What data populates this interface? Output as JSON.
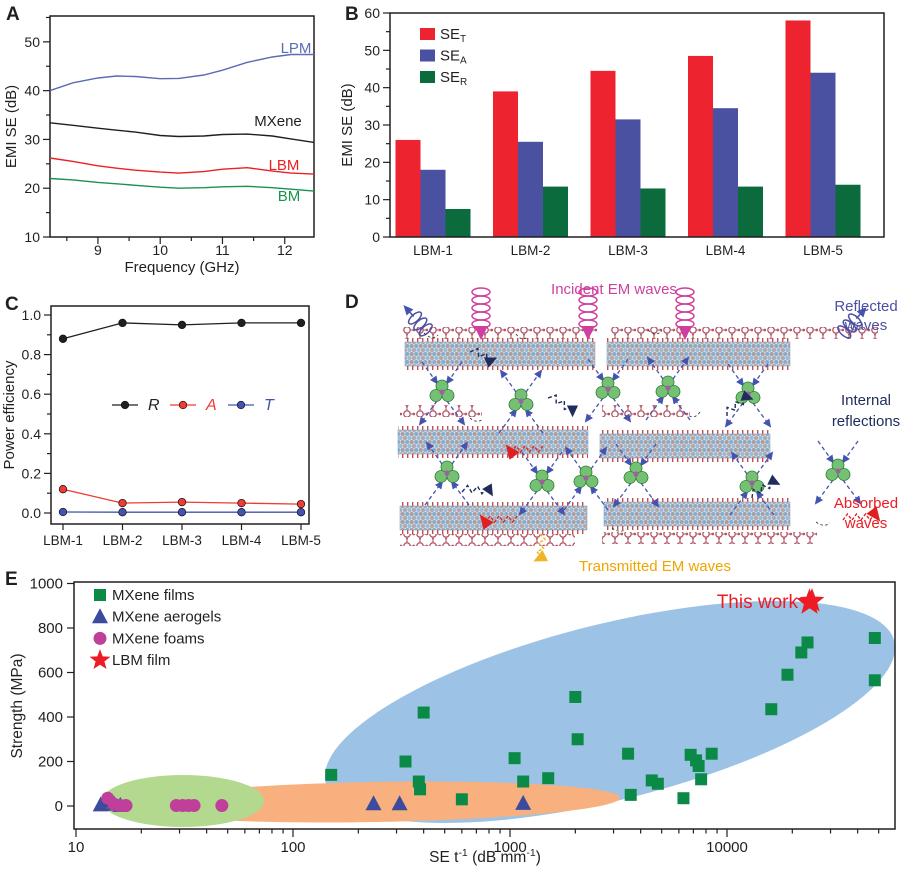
{
  "panels": {
    "a": "A",
    "b": "B",
    "c": "C",
    "d": "D",
    "e": "E"
  },
  "chart_data": [
    {
      "id": "A",
      "type": "line",
      "xlabel": "Frequency (GHz)",
      "ylabel": "EMI SE (dB)",
      "xlim": [
        8.23,
        12.47
      ],
      "ylim": [
        10,
        55.3
      ],
      "xticks": [
        9,
        10,
        11,
        12
      ],
      "yticks": [
        10,
        20,
        30,
        40,
        50
      ],
      "x": [
        8.23,
        8.6,
        9.0,
        9.3,
        9.6,
        10.0,
        10.3,
        10.7,
        11.0,
        11.4,
        11.8,
        12.1,
        12.47
      ],
      "series": [
        {
          "name": "LPM",
          "color": "#5b6cb5",
          "y": [
            40.0,
            41.6,
            42.6,
            43.0,
            42.9,
            42.45,
            42.5,
            43.2,
            44.2,
            45.8,
            46.9,
            47.4,
            47.4
          ]
        },
        {
          "name": "MXene",
          "color": "#231f20",
          "y": [
            33.4,
            32.9,
            32.3,
            31.9,
            31.5,
            30.8,
            30.6,
            30.7,
            31.0,
            31.1,
            30.7,
            30.1,
            29.4
          ]
        },
        {
          "name": "LBM",
          "color": "#ed2024",
          "y": [
            26.2,
            25.5,
            24.6,
            24.1,
            23.7,
            23.3,
            23.1,
            23.4,
            23.9,
            24.2,
            23.5,
            23.1,
            22.9
          ]
        },
        {
          "name": "BM",
          "color": "#17934f",
          "y": [
            22.0,
            21.7,
            21.2,
            20.9,
            20.6,
            20.2,
            20.0,
            20.1,
            20.3,
            20.4,
            20.1,
            19.8,
            19.4
          ]
        }
      ]
    },
    {
      "id": "B",
      "type": "bar",
      "ylabel": "EMI SE (dB)",
      "ylim": [
        0,
        60
      ],
      "yticks": [
        0,
        10,
        20,
        30,
        40,
        50,
        60
      ],
      "categories": [
        "LBM-1",
        "LBM-2",
        "LBM-3",
        "LBM-4",
        "LBM-5"
      ],
      "series": [
        {
          "label_main": "SE",
          "label_sub": "T",
          "color": "#ee2330",
          "values": [
            26,
            39,
            44.5,
            48.5,
            58
          ]
        },
        {
          "label_main": "SE",
          "label_sub": "A",
          "color": "#4a51a0",
          "values": [
            18,
            25.5,
            31.5,
            34.5,
            44
          ]
        },
        {
          "label_main": "SE",
          "label_sub": "R",
          "color": "#0b6b3d",
          "values": [
            7.5,
            13.5,
            13,
            13.5,
            14
          ]
        }
      ]
    },
    {
      "id": "C",
      "type": "line",
      "ylabel": "Power efficiency",
      "ylim": [
        -0.05,
        1.05
      ],
      "yticks": [
        0.0,
        0.2,
        0.4,
        0.6,
        0.8,
        1.0
      ],
      "categories": [
        "LBM-1",
        "LBM-2",
        "LBM-3",
        "LBM-4",
        "LBM-5"
      ],
      "series": [
        {
          "name": "R",
          "color": "#231f20",
          "values": [
            0.88,
            0.96,
            0.95,
            0.96,
            0.96
          ]
        },
        {
          "name": "A",
          "color": "#ee3b33",
          "values": [
            0.12,
            0.05,
            0.055,
            0.05,
            0.045
          ]
        },
        {
          "name": "T",
          "color": "#4453b0",
          "values": [
            0.005,
            0.004,
            0.004,
            0.004,
            0.004
          ]
        }
      ]
    },
    {
      "id": "E",
      "type": "scatter",
      "ylabel": "Strength (MPa)",
      "xlabel_parts": [
        {
          "t": "SE t"
        },
        {
          "t": "-1",
          "sup": true
        },
        {
          "t": " (dB mm"
        },
        {
          "t": "-1",
          "sup": true
        },
        {
          "t": ")"
        }
      ],
      "xticks": [
        10,
        100,
        1000,
        10000
      ],
      "yticks": [
        0,
        200,
        400,
        600,
        800,
        1000
      ],
      "xlim_log": [
        10,
        59000
      ],
      "ylim": [
        -100,
        1005
      ],
      "series": [
        {
          "name": "MXene films",
          "marker": "square",
          "color": "#0a8a46",
          "points": [
            [
              150,
              140
            ],
            [
              330,
              200
            ],
            [
              400,
              420
            ],
            [
              380,
              110
            ],
            [
              385,
              75
            ],
            [
              600,
              30
            ],
            [
              1050,
              215
            ],
            [
              1150,
              110
            ],
            [
              1500,
              125
            ],
            [
              2000,
              490
            ],
            [
              2050,
              300
            ],
            [
              3500,
              235
            ],
            [
              3600,
              50
            ],
            [
              4500,
              115
            ],
            [
              4800,
              100
            ],
            [
              6300,
              35
            ],
            [
              6800,
              230
            ],
            [
              7200,
              205
            ],
            [
              7400,
              180
            ],
            [
              7600,
              120
            ],
            [
              8500,
              235
            ],
            [
              16000,
              435
            ],
            [
              19000,
              590
            ],
            [
              22000,
              690
            ],
            [
              23500,
              735
            ],
            [
              48000,
              755
            ],
            [
              48000,
              565
            ]
          ]
        },
        {
          "name": "MXene aerogels",
          "marker": "triangle",
          "color": "#3c4b9e",
          "points": [
            [
              13,
              5
            ],
            [
              14,
              22
            ],
            [
              15,
              8
            ],
            [
              16,
              3
            ],
            [
              235,
              10
            ],
            [
              310,
              10
            ],
            [
              1150,
              12
            ]
          ]
        },
        {
          "name": "MXene foams",
          "marker": "circle",
          "color": "#bf3f9a",
          "points": [
            [
              14,
              35
            ],
            [
              15,
              8
            ],
            [
              16,
              2
            ],
            [
              17,
              2
            ],
            [
              29,
              2
            ],
            [
              31,
              2
            ],
            [
              33,
              2
            ],
            [
              35,
              2
            ],
            [
              47,
              2
            ]
          ]
        },
        {
          "name": "LBM film",
          "marker": "star",
          "color": "#ed1c24",
          "points": [
            [
              24000,
              915
            ]
          ]
        }
      ],
      "annotation": {
        "text": "This work",
        "color": "#ed1c24"
      },
      "regions": [
        {
          "name": "films-region",
          "color": "#9cc3e5"
        },
        {
          "name": "aerogel-band-region",
          "color": "#f7b07e"
        },
        {
          "name": "foams-region",
          "color": "#b2d98e"
        }
      ]
    }
  ],
  "panel_d": {
    "labels": {
      "incident": "Incident EM waves",
      "reflected": [
        "Reflected",
        "waves"
      ],
      "internal": [
        "Internal",
        "reflections"
      ],
      "absorbed": [
        "Absorbed",
        "waves"
      ],
      "transmitted": "Transmitted EM waves"
    },
    "colors": {
      "incident": "#cf3f9f",
      "reflected": "#4a50a2",
      "internal": "#1f2c5c",
      "absorbed": "#ed1c24",
      "transmitted": "#f0a500"
    }
  }
}
